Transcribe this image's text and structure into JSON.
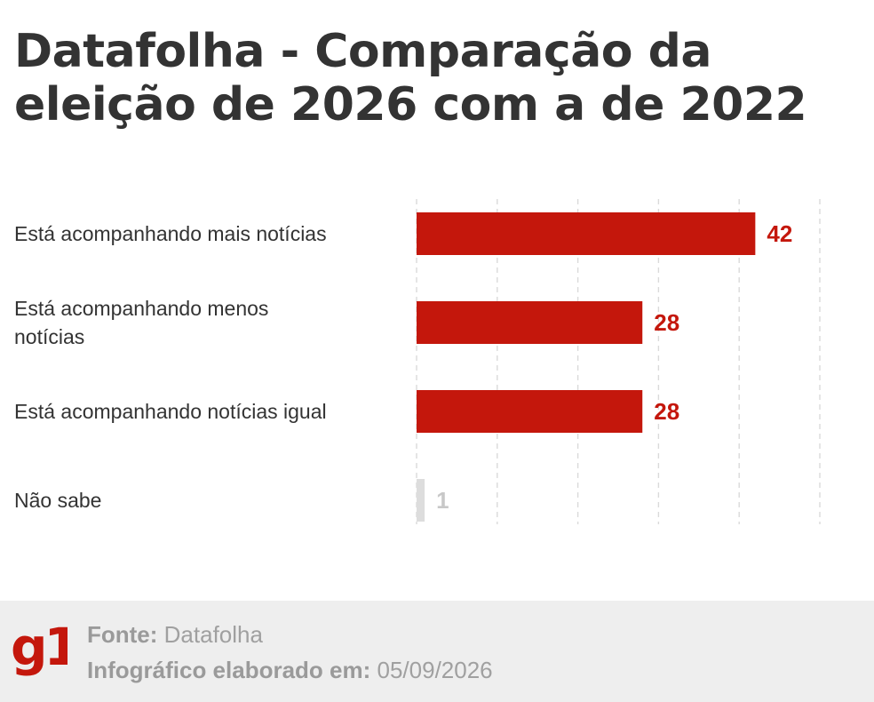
{
  "colors": {
    "bar": "#c4170c",
    "muted_bar": "#dddddd",
    "muted_label": "#c8c8c8",
    "grid": "#dadada",
    "category_text": "#333333"
  },
  "chart_data": {
    "type": "bar",
    "orientation": "horizontal",
    "title": "Datafolha - Comparação da eleição de 2026 com a de 2022",
    "categories": [
      "Está acompanhando mais notícias",
      "Está acompanhando menos notícias",
      "Está acompanhando notícias igual",
      "Não sabe"
    ],
    "values": [
      42,
      28,
      28,
      1
    ],
    "value_labels": [
      "42",
      "28",
      "28",
      "1"
    ],
    "xlim": [
      0,
      50
    ],
    "grid": true,
    "xlabel": "",
    "ylabel": ""
  },
  "footer": {
    "logo": "g1",
    "source_label": "Fonte:",
    "source_value": "Datafolha",
    "date_label": "Infográfico elaborado em:",
    "date_value": "05/09/2026"
  }
}
